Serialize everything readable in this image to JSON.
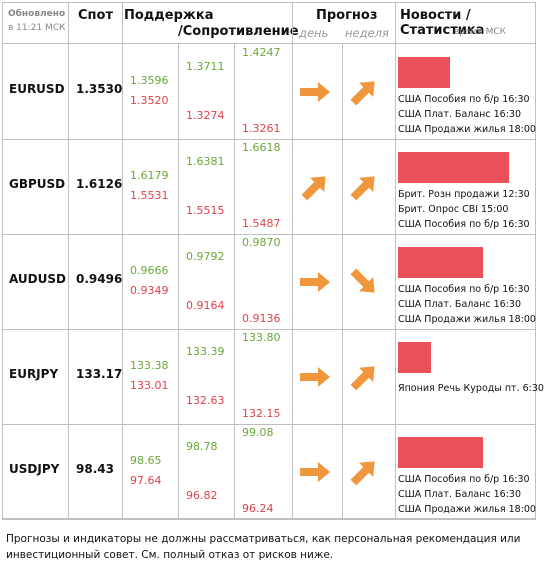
{
  "header": {
    "updated_label": "Обновлено",
    "updated_time": "в 11:21 МСК",
    "spot": "Спот",
    "support": "Поддержка",
    "resistance": "/Сопротивление",
    "forecast": "Прогноз",
    "day": "день",
    "week": "неделя",
    "news": "Новости / Статистика",
    "time_note": "время МСК"
  },
  "colors": {
    "green": "#6aa83a",
    "red": "#e0424a",
    "arrow": "#f0963c",
    "bar": "#e8505a",
    "border": "#bfbfbf"
  },
  "rows": [
    {
      "pair": "EURUSD",
      "spot": "1.3530",
      "s1_res": "1.3596",
      "s1_sup": "1.3520",
      "s2_res": "1.3711",
      "s2_sup": "1.3274",
      "s3_res": "1.4247",
      "s3_sup": "1.3261",
      "day_arrow": "arrow-right-icon",
      "week_arrow": "arrow-up-right-icon",
      "news_level": 0.4,
      "news": [
        "США Пособия по б/р 16:30",
        "США Плат. Баланс 16:30",
        "США Продажи жилья 18:00"
      ]
    },
    {
      "pair": "GBPUSD",
      "spot": "1.6126",
      "s1_res": "1.6179",
      "s1_sup": "1.5531",
      "s2_res": "1.6381",
      "s2_sup": "1.5515",
      "s3_res": "1.6618",
      "s3_sup": "1.5487",
      "day_arrow": "arrow-up-right-icon",
      "week_arrow": "arrow-up-right-icon",
      "news_level": 0.85,
      "news": [
        "Брит. Розн продажи 12:30",
        "Брит. Опрос CBI 15:00",
        "США Пособия по б/р 16:30"
      ]
    },
    {
      "pair": "AUDUSD",
      "spot": "0.9496",
      "s1_res": "0.9666",
      "s1_sup": "0.9349",
      "s2_res": "0.9792",
      "s2_sup": "0.9164",
      "s3_res": "0.9870",
      "s3_sup": "0.9136",
      "day_arrow": "arrow-right-icon",
      "week_arrow": "arrow-down-right-icon",
      "news_level": 0.65,
      "news": [
        "США Пособия по б/р 16:30",
        "США Плат. Баланс 16:30",
        "США Продажи жилья 18:00"
      ]
    },
    {
      "pair": "EURJPY",
      "spot": "133.17",
      "s1_res": "133.38",
      "s1_sup": "133.01",
      "s2_res": "133.39",
      "s2_sup": "132.63",
      "s3_res": "133.80",
      "s3_sup": "132.15",
      "day_arrow": "arrow-right-icon",
      "week_arrow": "arrow-up-right-icon",
      "news_level": 0.25,
      "news": [
        "Япония Речь Куроды пт. 6:30"
      ]
    },
    {
      "pair": "USDJPY",
      "spot": "98.43",
      "s1_res": "98.65",
      "s1_sup": "97.64",
      "s2_res": "98.78",
      "s2_sup": "96.82",
      "s3_res": "99.08",
      "s3_sup": "96.24",
      "day_arrow": "arrow-right-icon",
      "week_arrow": "arrow-up-right-icon",
      "news_level": 0.65,
      "news": [
        "США Пособия по б/р 16:30",
        "США Плат. Баланс 16:30",
        "США Продажи жилья 18:00"
      ]
    }
  ],
  "disclaimer": "Прогнозы и индикаторы не должны рассматриваться, как персональная рекомендация или инвестиционный совет. См. полный отказ от рисков ниже."
}
